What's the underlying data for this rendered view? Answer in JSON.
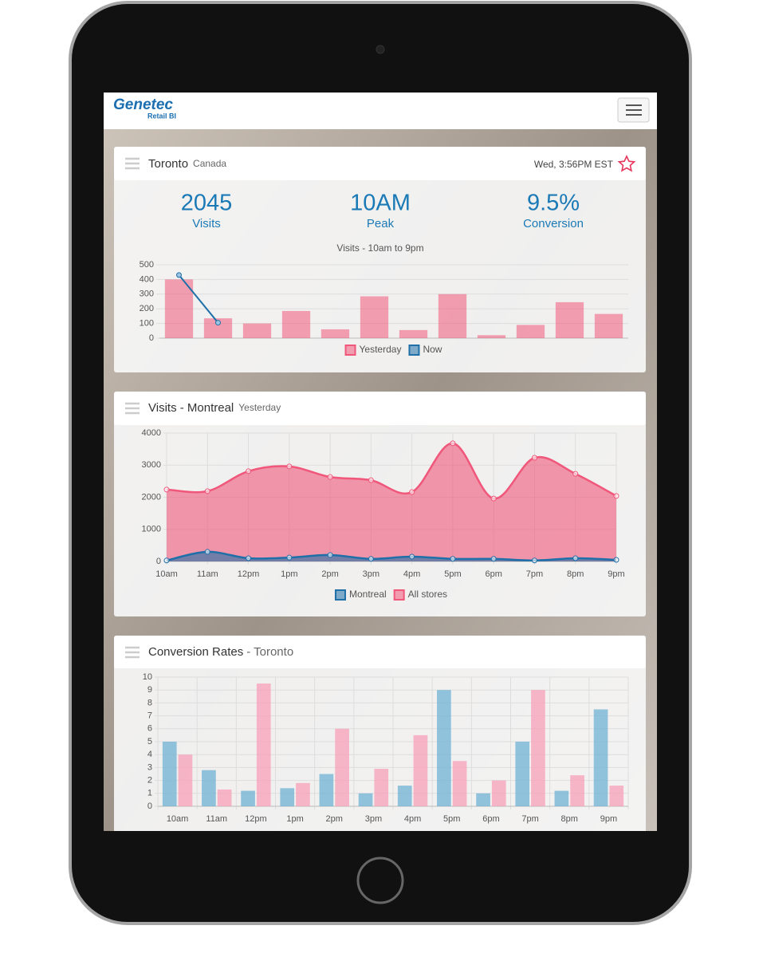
{
  "header": {
    "logo": "Genetec",
    "logo_sub": "Retail BI"
  },
  "location": {
    "city": "Toronto",
    "country": "Canada",
    "time": "Wed, 3:56PM EST"
  },
  "stats": [
    {
      "value": "2045",
      "label": "Visits"
    },
    {
      "value": "10AM",
      "label": "Peak"
    },
    {
      "value": "9.5%",
      "label": "Conversion"
    }
  ],
  "chart_data": [
    {
      "type": "bar",
      "title": "Visits - 10am to 9pm",
      "categories": [
        null,
        null,
        null,
        null,
        null,
        null,
        null,
        null,
        null,
        null,
        null,
        null
      ],
      "series": [
        {
          "name": "Yesterday",
          "color": "#f0577a",
          "values": [
            400,
            135,
            100,
            185,
            60,
            285,
            55,
            300,
            20,
            90,
            245,
            165
          ]
        },
        {
          "name": "Now",
          "type": "line",
          "color": "#1f6fa8",
          "values": [
            430,
            105,
            null,
            null,
            null,
            null,
            null,
            null,
            null,
            null,
            null,
            null
          ]
        }
      ],
      "ylim": [
        0,
        500
      ],
      "yticks": [
        0,
        100,
        200,
        300,
        400,
        500
      ],
      "grid": true,
      "legend": "bottom"
    },
    {
      "type": "area",
      "title": "Visits - Montreal",
      "subtitle": "Yesterday",
      "categories": [
        "10am",
        "11am",
        "12pm",
        "1pm",
        "2pm",
        "3pm",
        "4pm",
        "5pm",
        "6pm",
        "7pm",
        "8pm",
        "9pm"
      ],
      "series": [
        {
          "name": "Montreal",
          "color": "#1f6fa8",
          "values": [
            30,
            300,
            100,
            120,
            200,
            80,
            150,
            80,
            80,
            30,
            100,
            50
          ]
        },
        {
          "name": "All stores",
          "color": "#f0577a",
          "values": [
            2240,
            2190,
            2810,
            2960,
            2630,
            2530,
            2160,
            3680,
            1960,
            3230,
            2730,
            2040
          ]
        }
      ],
      "ylim": [
        0,
        4000
      ],
      "yticks": [
        0,
        1000,
        2000,
        3000,
        4000
      ],
      "grid": true,
      "xgrid": true,
      "legend": "bottom"
    },
    {
      "type": "bar",
      "title": "Conversion Rates",
      "subtitle": "- Toronto",
      "categories": [
        "10am",
        "11am",
        "12pm",
        "1pm",
        "2pm",
        "3pm",
        "4pm",
        "5pm",
        "6pm",
        "7pm",
        "8pm",
        "9pm"
      ],
      "series": [
        {
          "color": "#6fb2d4",
          "values": [
            5,
            2.8,
            1.2,
            1.4,
            2.5,
            1,
            1.6,
            9,
            1,
            5,
            1.2,
            7.5
          ]
        },
        {
          "color": "#f7a0b8",
          "values": [
            4,
            1.3,
            9.5,
            1.8,
            6,
            2.9,
            5.5,
            3.5,
            2,
            9,
            2.4,
            1.6
          ]
        }
      ],
      "ylim": [
        0,
        10
      ],
      "yticks": [
        0,
        1,
        2,
        3,
        4,
        5,
        6,
        7,
        8,
        9,
        10
      ],
      "grid": true,
      "xgrid": true
    }
  ]
}
